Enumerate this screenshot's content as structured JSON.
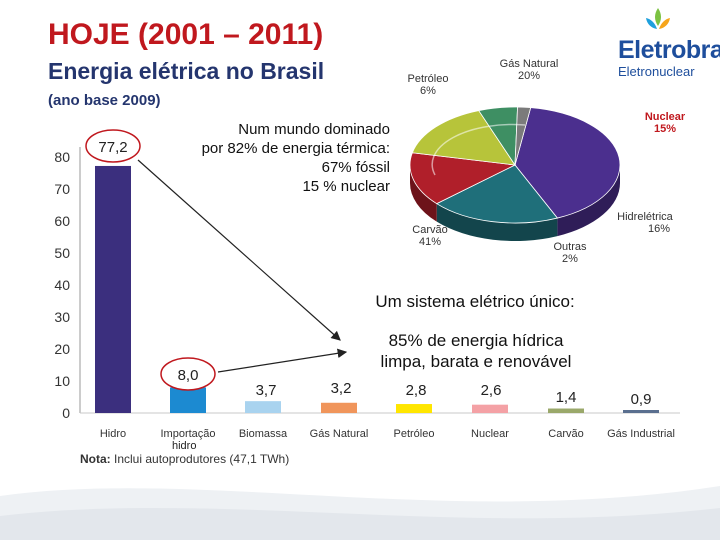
{
  "header": {
    "title": "HOJE (2001 – 2011)",
    "subtitle": "Energia elétrica no Brasil",
    "base_year": "(ano base 2009)"
  },
  "logo": {
    "name": "Eletrobras",
    "division": "Eletronuclear"
  },
  "callouts": {
    "world": [
      "Num mundo dominado",
      "por 82% de energia térmica:",
      "67% fóssil",
      "15 % nuclear"
    ],
    "system": "Um sistema elétrico único:",
    "hydro": [
      "85% de energia hídrica",
      "limpa, barata e renovável"
    ]
  },
  "note": {
    "label": "Nota:",
    "text": " Inclui autoprodutores (47,1 TWh)"
  },
  "extra_label": "hidro",
  "colors": {
    "hidro": "#3b2f7e",
    "importacao": "#1c8ad1",
    "biomassa": "#a9d3ef",
    "gas_natural": "#f0955b",
    "petroleo": "#ffe600",
    "nuclear": "#f4a1a5",
    "carvao": "#9aa86a",
    "gas_industrial": "#5a6f8f",
    "title_red": "#c0181e",
    "title_blue": "#24356e"
  },
  "chart_data": [
    {
      "type": "bar",
      "title": "",
      "categories": [
        "Hidro",
        "Importação",
        "Biomassa",
        "Gás Natural",
        "Petróleo",
        "Nuclear",
        "Carvão",
        "Gás Industrial"
      ],
      "values": [
        77.2,
        8.0,
        3.7,
        3.2,
        2.8,
        2.6,
        1.4,
        0.9
      ],
      "value_labels": [
        "77,2",
        "8,0",
        "3,7",
        "3,2",
        "2,8",
        "2,6",
        "1,4",
        "0,9"
      ],
      "yticks": [
        "0",
        "10",
        "20",
        "30",
        "40",
        "50",
        "60",
        "70",
        "80"
      ],
      "ylim": [
        0,
        80
      ],
      "xlabel": "",
      "ylabel": "",
      "grid": false
    },
    {
      "type": "pie",
      "title": "",
      "slices": [
        {
          "label": "Carvão",
          "value": 41,
          "display": "41%"
        },
        {
          "label": "Gás Natural",
          "value": 20,
          "display": "20%"
        },
        {
          "label": "Nuclear",
          "value": 15,
          "display": "15%"
        },
        {
          "label": "Hidrelétrica",
          "value": 16,
          "display": "16%"
        },
        {
          "label": "Petróleo",
          "value": 6,
          "display": "6%"
        },
        {
          "label": "Outras",
          "value": 2,
          "display": "2%"
        }
      ],
      "slice_colors": [
        "#4b2f8e",
        "#1f6f7a",
        "#b01f2a",
        "#b7c43a",
        "#3e8f63",
        "#7b7b7b"
      ]
    }
  ]
}
